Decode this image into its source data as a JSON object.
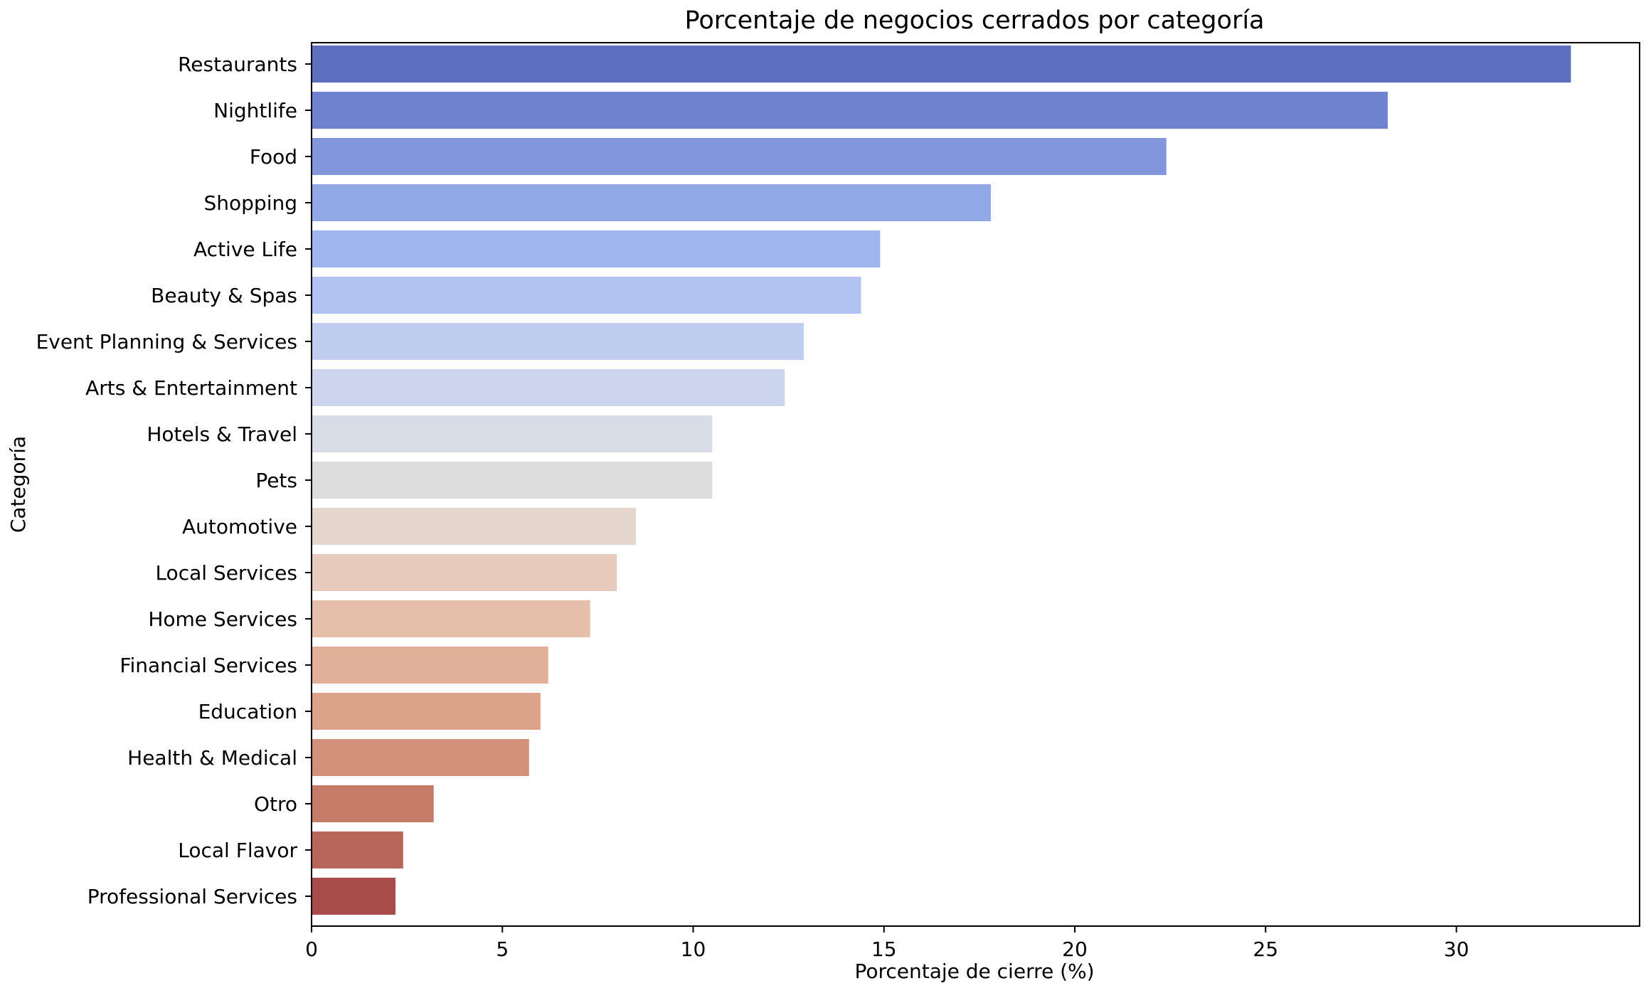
{
  "chart_data": {
    "type": "bar",
    "orientation": "horizontal",
    "title": "Porcentaje de negocios cerrados por categoría",
    "xlabel": "Porcentaje de cierre (%)",
    "ylabel": "Categoría",
    "categories": [
      "Restaurants",
      "Nightlife",
      "Food",
      "Shopping",
      "Active Life",
      "Beauty & Spas",
      "Event Planning & Services",
      "Arts & Entertainment",
      "Hotels & Travel",
      "Pets",
      "Automotive",
      "Local Services",
      "Home Services",
      "Financial Services",
      "Education",
      "Health & Medical",
      "Otro",
      "Local Flavor",
      "Professional Services"
    ],
    "values": [
      33.0,
      28.2,
      22.4,
      17.8,
      14.9,
      14.4,
      12.9,
      12.4,
      10.5,
      10.5,
      8.5,
      8.0,
      7.3,
      6.2,
      6.0,
      5.7,
      3.2,
      2.4,
      2.2
    ],
    "colors": [
      "#5f6fc0",
      "#6f82d0",
      "#8196dc",
      "#91a8e6",
      "#a1b5ed",
      "#b0c3f2",
      "#bfcdf0",
      "#ccd5ec",
      "#d7dce6",
      "#dcdcdc",
      "#e4d5cd",
      "#e7ccbe",
      "#e6bfab",
      "#e2b098",
      "#dca38b",
      "#d39179",
      "#c67c69",
      "#b8655a",
      "#a84c4a"
    ],
    "xlim": [
      0,
      34.8
    ],
    "xticks": [
      0,
      5,
      10,
      15,
      20,
      25,
      30
    ],
    "grid": false,
    "legend": "none"
  }
}
